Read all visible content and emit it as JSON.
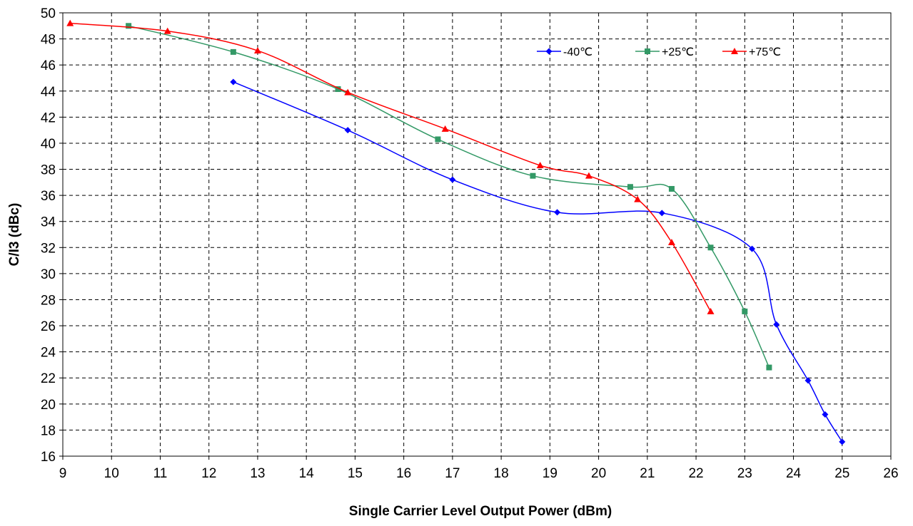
{
  "chart_data": {
    "type": "line",
    "title": "",
    "xlabel": "Single Carrier Level Output Power (dBm)",
    "ylabel": "C/I3 (dBc)",
    "xlim": [
      9,
      26
    ],
    "ylim": [
      16,
      50
    ],
    "xticks": [
      9,
      10,
      11,
      12,
      13,
      14,
      15,
      16,
      17,
      18,
      19,
      20,
      21,
      22,
      23,
      24,
      25,
      26
    ],
    "yticks": [
      16,
      18,
      20,
      22,
      24,
      26,
      28,
      30,
      32,
      34,
      36,
      38,
      40,
      42,
      44,
      46,
      48,
      50
    ],
    "grid": true,
    "legend_position": "top-right",
    "series": [
      {
        "name": "-40℃",
        "color": "#0000ff",
        "marker": "diamond",
        "x": [
          12.5,
          14.85,
          17.0,
          19.15,
          21.3,
          23.15,
          23.65,
          24.3,
          24.65,
          25.0
        ],
        "y": [
          44.7,
          41.0,
          37.2,
          34.7,
          34.65,
          31.9,
          26.1,
          21.8,
          19.2,
          17.1
        ]
      },
      {
        "name": "+25℃",
        "color": "#339966",
        "marker": "square",
        "x": [
          10.35,
          12.5,
          14.65,
          16.7,
          18.65,
          20.65,
          21.5,
          22.3,
          23.0,
          23.5
        ],
        "y": [
          49.0,
          47.0,
          44.15,
          40.3,
          37.5,
          36.65,
          36.5,
          32.0,
          27.1,
          22.8
        ]
      },
      {
        "name": "+75℃",
        "color": "#ff0000",
        "marker": "triangle",
        "x": [
          9.15,
          11.15,
          13.0,
          14.85,
          16.85,
          18.8,
          19.8,
          20.8,
          21.5,
          22.3
        ],
        "y": [
          49.2,
          48.6,
          47.1,
          43.9,
          41.1,
          38.3,
          37.5,
          35.7,
          32.4,
          27.1
        ]
      }
    ]
  }
}
